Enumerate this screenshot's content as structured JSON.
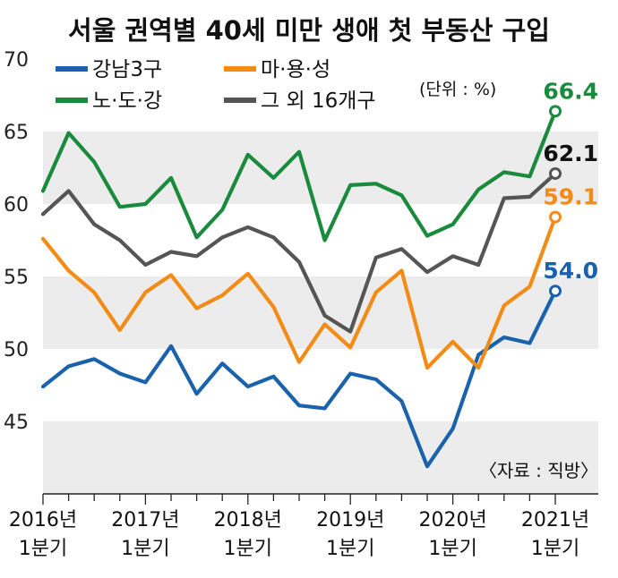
{
  "chart_data": {
    "type": "line",
    "title": "서울 권역별 40세 미만 생애 첫 부동산 구입",
    "unit_note": "(단위 : %)",
    "source": "〈자료 : 직방〉",
    "ylim": [
      40,
      70
    ],
    "yticks": [
      "70",
      "65",
      "60",
      "55",
      "50",
      "45"
    ],
    "ytick_values": [
      70,
      65,
      60,
      55,
      50,
      45
    ],
    "xtick_lines": [
      [
        "2016년",
        "1분기"
      ],
      [
        "2017년",
        "1분기"
      ],
      [
        "2018년",
        "1분기"
      ],
      [
        "2019년",
        "1분기"
      ],
      [
        "2020년",
        "1분기"
      ],
      [
        "2021년",
        "1분기"
      ]
    ],
    "grid": "alternating horizontal bands",
    "legend_position": "top-left",
    "series": [
      {
        "name": "강남3구",
        "color": "#1a62ac",
        "values": [
          47.4,
          48.8,
          49.3,
          48.3,
          47.7,
          50.2,
          46.9,
          49.0,
          47.4,
          48.1,
          46.1,
          45.9,
          48.3,
          47.9,
          46.4,
          41.9,
          44.5,
          49.6,
          50.8,
          50.4,
          54.0
        ],
        "end_label": "54.0"
      },
      {
        "name": "마·용·성",
        "color": "#f28c17",
        "values": [
          57.6,
          55.4,
          53.9,
          51.3,
          53.9,
          55.1,
          52.8,
          53.7,
          55.2,
          52.9,
          49.1,
          51.7,
          50.1,
          53.9,
          55.4,
          48.7,
          50.5,
          48.7,
          53.0,
          54.3,
          59.1
        ],
        "end_label": "59.1"
      },
      {
        "name": "노·도·강",
        "color": "#1a8a3d",
        "values": [
          60.9,
          64.9,
          62.9,
          59.8,
          60.0,
          61.8,
          57.7,
          59.6,
          63.4,
          61.8,
          63.6,
          57.5,
          61.3,
          61.4,
          60.6,
          57.8,
          58.6,
          61.0,
          62.2,
          61.9,
          66.4
        ],
        "end_label": "66.4"
      },
      {
        "name": "그 외 16개구",
        "color": "#555555",
        "values": [
          59.3,
          60.9,
          58.6,
          57.5,
          55.8,
          56.7,
          56.4,
          57.7,
          58.4,
          57.7,
          56.0,
          52.3,
          51.2,
          56.3,
          56.9,
          55.3,
          56.4,
          55.8,
          60.4,
          60.5,
          62.1
        ],
        "end_label": "62.1"
      }
    ]
  }
}
